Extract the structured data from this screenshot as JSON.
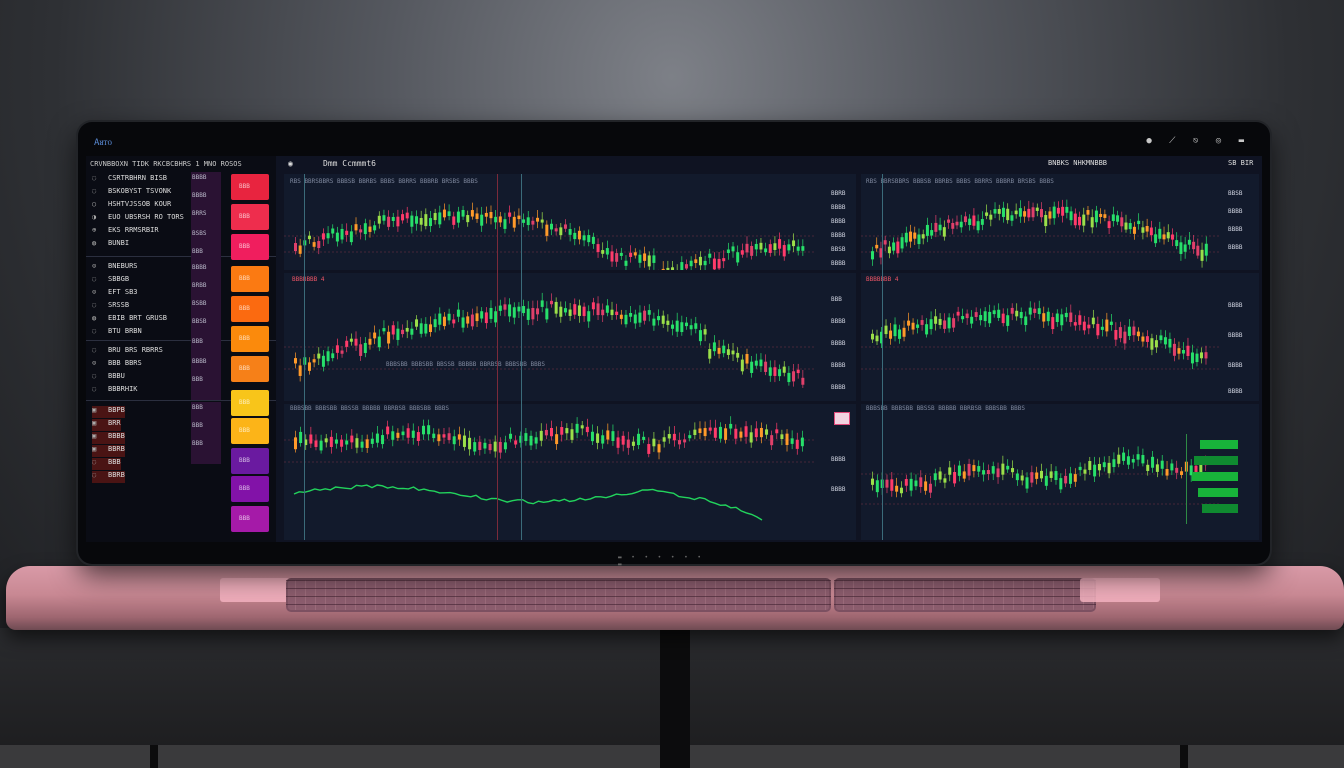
{
  "app": {
    "name": "Aᴚᴛᴏ",
    "titlebar_icons": "●  ⟋  ⎋  ◎ ▬"
  },
  "header": {
    "left_title": "CRVNBBOXN TIDK RKCBCBHRS 1 MNO ROSOS",
    "center_title": "Dmm Ccmmmt6",
    "right_title": "BNBKS NHKMNBBB",
    "right_code": "SB BIR"
  },
  "sidebar": {
    "rows": [
      {
        "icon": "◌",
        "label": "CSRTRBHRN BISB"
      },
      {
        "icon": "◌",
        "label": "BSKOBYST TSVONK"
      },
      {
        "icon": "○",
        "label": "HSHTVJSSOB KOUR"
      },
      {
        "icon": "◑",
        "label": "EUO UBSRSH RO TORS"
      },
      {
        "icon": "⊕",
        "label": "EKS RRMSRBIR"
      },
      {
        "icon": "◍",
        "label": "BUNBI"
      },
      {
        "icon": "⊙",
        "label": "BNEBURS"
      },
      {
        "icon": "◌",
        "label": "SBBGB"
      },
      {
        "icon": "⊙",
        "label": "EFT SB3"
      },
      {
        "icon": "◌",
        "label": "SRSSB"
      },
      {
        "icon": "◍",
        "label": "EBIB BRT GRUSB"
      },
      {
        "icon": "◌",
        "label": "BTU BRBN"
      },
      {
        "icon": "◌",
        "label": "BRU BRS RBRRS"
      },
      {
        "icon": "⊙",
        "label": "BBB BBRS"
      },
      {
        "icon": "◌",
        "label": "BBBU"
      },
      {
        "icon": "◌",
        "label": "BBBRHIK"
      },
      {
        "icon": "▣",
        "label": "BBPB"
      },
      {
        "icon": "▣",
        "label": "BRR"
      },
      {
        "icon": "▣",
        "label": "BBBB"
      },
      {
        "icon": "▣",
        "label": "BBRB"
      },
      {
        "icon": "◌",
        "label": "BBB"
      },
      {
        "icon": "◌",
        "label": "BBRB"
      }
    ],
    "mids": [
      "BBBB",
      "BBBB",
      "BRRS",
      "BSBS",
      "BBB",
      "BBBB",
      "BRBB",
      "BSBB",
      "BBSB",
      "BBB",
      "BBBB",
      "BBB",
      "BBB",
      "BBB",
      "BBB"
    ],
    "badge_colors": [
      "#e8243f",
      "#ee2d4d",
      "#f01e5e",
      "#fb7a12",
      "#fb6a10",
      "#fb8a0c",
      "#f68018",
      "#f8c51a",
      "#fcb418",
      "#6a1aa0",
      "#8212a8",
      "#a51aa8"
    ],
    "badge_label": "BBB"
  },
  "panels": {
    "labels_right": [
      "BBRB",
      "BBBB",
      "BBBB",
      "BBBB",
      "BBSB",
      "BBBB",
      "BBB",
      "BBBB",
      "BBBB",
      "BBBB",
      "BBBB",
      "BBSB",
      "BBBB",
      "BBBB",
      "BBBB",
      "BBBB",
      "BBBB",
      "BBBB",
      "BBBB",
      "BBBB",
      "BBBB"
    ],
    "tab_text": "RBS  BBRSBBRS  BBBSB BBRBS BBBS  BBRRS BBBRB  BRSBS BBBS",
    "sub_text": "BBBSBB BBBSBB BBSSB BBBBB BBRBSB BBBSBB BBBS",
    "small_label": "BBBBBBB 4"
  },
  "nav_dots": "▬ • • • • • • ▬"
}
